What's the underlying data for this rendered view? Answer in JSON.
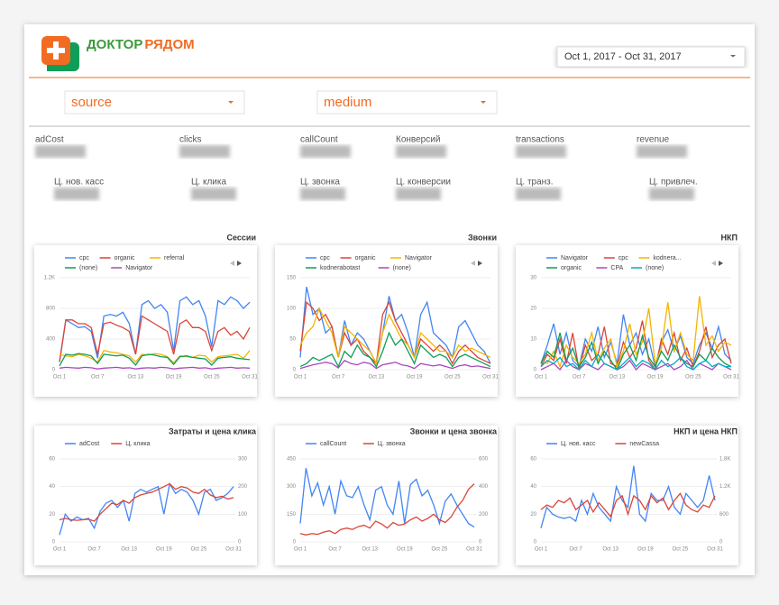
{
  "header": {
    "logo": {
      "part1": "ДОКТОР",
      "part2": "РЯДОМ"
    },
    "date_range": "Oct 1, 2017 - Oct 31, 2017"
  },
  "filters": [
    "source",
    "medium"
  ],
  "kpis": {
    "row1": [
      "adCost",
      "clicks",
      "callCount",
      "Конверсий",
      "transactions",
      "revenue"
    ],
    "row2": [
      "Ц. нов. касс",
      "Ц. клика",
      "Ц. звонка",
      "Ц. конверсии",
      "Ц. транз.",
      "Ц. привлеч."
    ]
  },
  "chart_data": [
    {
      "type": "line",
      "title": "Сессии",
      "categories": [
        "Oct 1",
        null,
        null,
        null,
        null,
        null,
        "Oct 7",
        null,
        null,
        null,
        null,
        null,
        "Oct 13",
        null,
        null,
        null,
        null,
        null,
        "Oct 19",
        null,
        null,
        null,
        null,
        null,
        "Oct 25",
        null,
        null,
        null,
        null,
        null,
        "Oct 31"
      ],
      "ylim": [
        0,
        1200
      ],
      "yticks": [
        0,
        400,
        800,
        {
          "value": 1200,
          "label": "1.2K"
        }
      ],
      "grid": true,
      "series": [
        {
          "name": "cpc",
          "color": "#4285f4",
          "values": [
            100,
            650,
            600,
            550,
            560,
            500,
            150,
            700,
            720,
            700,
            750,
            600,
            200,
            850,
            900,
            800,
            850,
            750,
            250,
            900,
            950,
            850,
            900,
            700,
            300,
            900,
            850,
            950,
            900,
            800,
            880
          ]
        },
        {
          "name": "organic",
          "color": "#db4437",
          "values": [
            100,
            650,
            650,
            600,
            600,
            550,
            200,
            600,
            620,
            580,
            550,
            500,
            200,
            700,
            650,
            600,
            550,
            500,
            200,
            600,
            650,
            550,
            550,
            500,
            250,
            500,
            550,
            450,
            500,
            400,
            550
          ]
        },
        {
          "name": "referral",
          "color": "#f4b400",
          "values": [
            200,
            180,
            170,
            200,
            180,
            150,
            100,
            250,
            230,
            220,
            200,
            180,
            100,
            200,
            190,
            210,
            200,
            170,
            90,
            180,
            170,
            160,
            190,
            180,
            100,
            170,
            180,
            190,
            200,
            150,
            250
          ]
        },
        {
          "name": "(none)",
          "color": "#0f9d58",
          "values": [
            50,
            200,
            190,
            210,
            200,
            180,
            80,
            200,
            190,
            180,
            190,
            150,
            60,
            180,
            200,
            190,
            170,
            160,
            70,
            170,
            180,
            160,
            150,
            140,
            60,
            150,
            160,
            170,
            150,
            140,
            130
          ]
        },
        {
          "name": "Navigator",
          "color": "#ab47bc",
          "values": [
            20,
            30,
            25,
            20,
            30,
            25,
            10,
            20,
            25,
            30,
            20,
            25,
            10,
            20,
            25,
            20,
            30,
            25,
            10,
            20,
            25,
            30,
            20,
            25,
            10,
            20,
            25,
            30,
            20,
            25,
            20
          ]
        }
      ]
    },
    {
      "type": "line",
      "title": "Звонки",
      "categories": [
        "Oct 1",
        null,
        null,
        null,
        null,
        null,
        "Oct 7",
        null,
        null,
        null,
        null,
        null,
        "Oct 13",
        null,
        null,
        null,
        null,
        null,
        "Oct 19",
        null,
        null,
        null,
        null,
        null,
        "Oct 25",
        null,
        null,
        null,
        null,
        null,
        "Oct 31"
      ],
      "ylim": [
        0,
        150
      ],
      "yticks": [
        0,
        50,
        100,
        150
      ],
      "grid": true,
      "series": [
        {
          "name": "cpc",
          "color": "#4285f4",
          "values": [
            20,
            135,
            90,
            100,
            60,
            70,
            20,
            80,
            40,
            60,
            50,
            30,
            10,
            60,
            120,
            80,
            90,
            60,
            20,
            90,
            110,
            60,
            50,
            40,
            20,
            70,
            80,
            60,
            40,
            30,
            10
          ]
        },
        {
          "name": "organic",
          "color": "#db4437",
          "values": [
            30,
            110,
            100,
            80,
            90,
            70,
            20,
            60,
            40,
            50,
            30,
            20,
            10,
            90,
            110,
            80,
            60,
            40,
            20,
            50,
            40,
            30,
            40,
            30,
            10,
            30,
            40,
            30,
            20,
            15,
            10
          ]
        },
        {
          "name": "Navigator",
          "color": "#f4b400",
          "values": [
            40,
            60,
            70,
            100,
            80,
            60,
            20,
            70,
            60,
            50,
            40,
            30,
            10,
            60,
            90,
            70,
            50,
            40,
            20,
            60,
            50,
            40,
            30,
            30,
            20,
            40,
            30,
            35,
            30,
            25,
            20
          ]
        },
        {
          "name": "kodnerabotast",
          "color": "#0f9d58",
          "values": [
            5,
            10,
            20,
            15,
            20,
            25,
            5,
            30,
            20,
            40,
            25,
            20,
            5,
            30,
            60,
            40,
            50,
            30,
            10,
            40,
            30,
            20,
            25,
            20,
            5,
            20,
            25,
            20,
            15,
            10,
            5
          ]
        },
        {
          "name": "(none)",
          "color": "#ab47bc",
          "values": [
            2,
            5,
            8,
            10,
            12,
            10,
            3,
            15,
            10,
            8,
            12,
            10,
            2,
            8,
            10,
            12,
            8,
            6,
            2,
            10,
            8,
            6,
            8,
            5,
            2,
            6,
            8,
            5,
            6,
            4,
            2
          ]
        }
      ]
    },
    {
      "type": "line",
      "title": "НКП",
      "categories": [
        "Oct 1",
        null,
        null,
        null,
        null,
        null,
        "Oct 7",
        null,
        null,
        null,
        null,
        null,
        "Oct 13",
        null,
        null,
        null,
        null,
        null,
        "Oct 19",
        null,
        null,
        null,
        null,
        null,
        "Oct 25",
        null,
        null,
        null,
        null,
        null,
        "Oct 31"
      ],
      "ylim": [
        0,
        30
      ],
      "yticks": [
        0,
        10,
        20,
        30
      ],
      "grid": true,
      "series": [
        {
          "name": "Navigator",
          "color": "#4285f4",
          "values": [
            2,
            8,
            15,
            5,
            12,
            3,
            1,
            10,
            6,
            14,
            4,
            9,
            2,
            18,
            8,
            12,
            5,
            10,
            1,
            9,
            13,
            6,
            11,
            4,
            2,
            8,
            12,
            7,
            14,
            5,
            3
          ]
        },
        {
          "name": "cpc",
          "color": "#db4437",
          "values": [
            1,
            5,
            3,
            10,
            2,
            12,
            0,
            8,
            3,
            5,
            14,
            2,
            1,
            9,
            4,
            7,
            16,
            3,
            0,
            10,
            5,
            12,
            3,
            7,
            1,
            6,
            14,
            4,
            8,
            10,
            2
          ]
        },
        {
          "name": "kodnera...",
          "color": "#f4b400",
          "values": [
            3,
            2,
            6,
            1,
            8,
            4,
            2,
            5,
            12,
            3,
            7,
            10,
            1,
            6,
            15,
            5,
            9,
            20,
            2,
            7,
            22,
            6,
            12,
            5,
            3,
            24,
            8,
            11,
            6,
            9,
            8
          ]
        },
        {
          "name": "organic",
          "color": "#0f9d58",
          "values": [
            2,
            6,
            4,
            12,
            3,
            7,
            1,
            4,
            9,
            2,
            6,
            3,
            0,
            5,
            8,
            3,
            11,
            4,
            1,
            6,
            3,
            8,
            4,
            2,
            1,
            5,
            3,
            7,
            4,
            2,
            1
          ]
        },
        {
          "name": "CPA",
          "color": "#ab47bc",
          "values": [
            0,
            1,
            2,
            0,
            3,
            1,
            0,
            2,
            1,
            0,
            2,
            1,
            0,
            1,
            3,
            0,
            2,
            1,
            0,
            1,
            2,
            0,
            1,
            3,
            0,
            2,
            1,
            0,
            2,
            1,
            0
          ]
        },
        {
          "name": "(none)",
          "color": "#00acc1",
          "values": [
            1,
            3,
            2,
            4,
            1,
            2,
            0,
            3,
            1,
            5,
            2,
            1,
            0,
            2,
            4,
            1,
            3,
            2,
            0,
            3,
            1,
            2,
            4,
            1,
            0,
            2,
            3,
            1,
            2,
            1,
            1
          ]
        }
      ]
    },
    {
      "type": "line",
      "title": "Затраты и цена клика",
      "categories": [
        "Oct 1",
        null,
        null,
        null,
        null,
        null,
        "Oct 7",
        null,
        null,
        null,
        null,
        null,
        "Oct 13",
        null,
        null,
        null,
        null,
        null,
        "Oct 19",
        null,
        null,
        null,
        null,
        null,
        "Oct 25",
        null,
        null,
        null,
        null,
        null,
        "Oct 31"
      ],
      "ylim": [
        0,
        60
      ],
      "yticks": [
        0,
        20,
        40,
        60
      ],
      "y2lim": [
        0,
        300
      ],
      "y2ticks": [
        0,
        100,
        200,
        300
      ],
      "grid": true,
      "series": [
        {
          "name": "adCost",
          "color": "#4285f4",
          "values": [
            5,
            20,
            15,
            18,
            16,
            17,
            10,
            22,
            28,
            30,
            25,
            30,
            15,
            35,
            38,
            36,
            38,
            40,
            20,
            42,
            35,
            38,
            36,
            30,
            20,
            36,
            38,
            30,
            32,
            35,
            40
          ]
        },
        {
          "name": "Ц. клика",
          "color": "#db4437",
          "axis": "y2",
          "values": [
            80,
            85,
            80,
            78,
            80,
            82,
            75,
            100,
            120,
            140,
            135,
            150,
            140,
            160,
            170,
            175,
            180,
            190,
            200,
            210,
            190,
            200,
            195,
            180,
            175,
            190,
            170,
            160,
            165,
            155,
            160
          ]
        }
      ]
    },
    {
      "type": "line",
      "title": "Звонки и цена звонка",
      "categories": [
        "Oct 1",
        null,
        null,
        null,
        null,
        null,
        "Oct 7",
        null,
        null,
        null,
        null,
        null,
        "Oct 13",
        null,
        null,
        null,
        null,
        null,
        "Oct 19",
        null,
        null,
        null,
        null,
        null,
        "Oct 25",
        null,
        null,
        null,
        null,
        null,
        "Oct 31"
      ],
      "ylim": [
        0,
        450
      ],
      "yticks": [
        0,
        150,
        300,
        450
      ],
      "y2lim": [
        0,
        600
      ],
      "y2ticks": [
        0,
        200,
        400,
        600
      ],
      "grid": true,
      "series": [
        {
          "name": "callCount",
          "color": "#4285f4",
          "values": [
            100,
            400,
            250,
            320,
            200,
            300,
            150,
            330,
            250,
            240,
            300,
            200,
            120,
            280,
            300,
            200,
            150,
            330,
            100,
            310,
            340,
            250,
            280,
            200,
            100,
            220,
            260,
            200,
            150,
            100,
            80
          ]
        },
        {
          "name": "Ц. звонка",
          "color": "#db4437",
          "axis": "y2",
          "values": [
            60,
            50,
            60,
            55,
            70,
            80,
            60,
            90,
            100,
            90,
            110,
            120,
            100,
            150,
            130,
            100,
            140,
            120,
            130,
            160,
            180,
            150,
            170,
            200,
            160,
            140,
            180,
            250,
            300,
            380,
            420
          ]
        }
      ]
    },
    {
      "type": "line",
      "title": "НКП и цена НКП",
      "categories": [
        "Oct 1",
        null,
        null,
        null,
        null,
        null,
        "Oct 7",
        null,
        null,
        null,
        null,
        null,
        "Oct 13",
        null,
        null,
        null,
        null,
        null,
        "Oct 19",
        null,
        null,
        null,
        null,
        null,
        "Oct 25",
        null,
        null,
        null,
        null,
        null,
        "Oct 31"
      ],
      "ylim": [
        0,
        60
      ],
      "yticks": [
        0,
        20,
        40,
        60
      ],
      "y2lim": [
        0,
        1800
      ],
      "y2ticks": [
        0,
        600,
        {
          "value": 1200,
          "label": "1.2K"
        },
        {
          "value": 1800,
          "label": "1.8K"
        }
      ],
      "grid": true,
      "series": [
        {
          "name": "Ц. нов. касс",
          "color": "#4285f4",
          "values": [
            10,
            25,
            20,
            18,
            17,
            18,
            15,
            30,
            20,
            35,
            25,
            20,
            15,
            40,
            30,
            25,
            55,
            20,
            15,
            35,
            30,
            30,
            40,
            25,
            20,
            35,
            30,
            25,
            30,
            48,
            30
          ]
        },
        {
          "name": "newCassa",
          "color": "#db4437",
          "axis": "y2",
          "values": [
            700,
            800,
            750,
            900,
            850,
            950,
            700,
            800,
            900,
            650,
            850,
            700,
            550,
            900,
            1000,
            600,
            1000,
            900,
            700,
            1000,
            850,
            950,
            700,
            900,
            1050,
            800,
            700,
            650,
            800,
            750,
            1000
          ]
        }
      ]
    }
  ]
}
